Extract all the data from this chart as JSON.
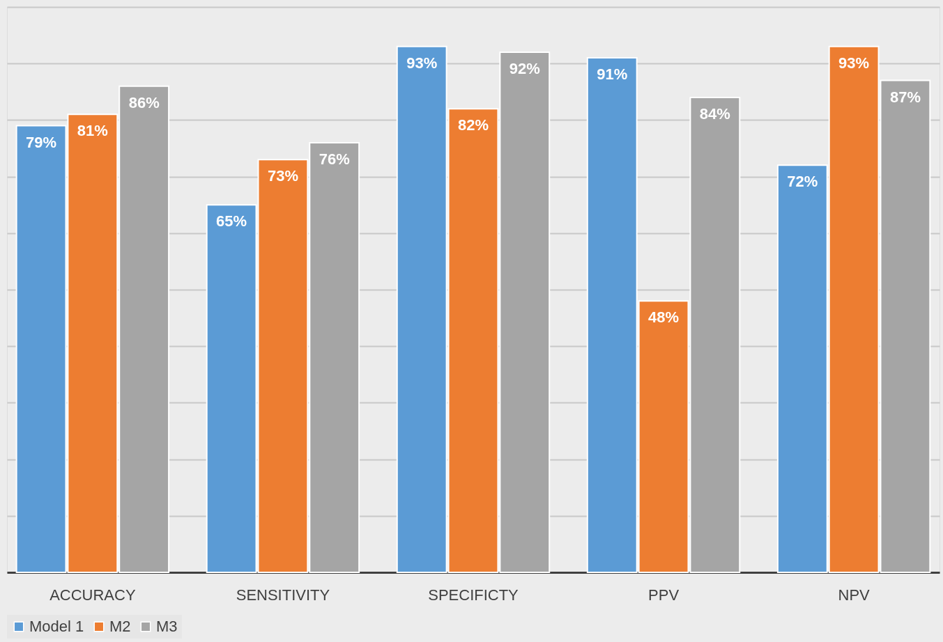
{
  "chart_data": {
    "type": "bar",
    "categories": [
      "ACCURACY",
      "SENSITIVITY",
      "SPECIFICTY",
      "PPV",
      "NPV"
    ],
    "series": [
      {
        "name": "Model 1",
        "color": "#5b9bd5",
        "values": [
          79,
          65,
          93,
          91,
          72
        ],
        "value_labels": [
          "79%",
          "65%",
          "93%",
          "91%",
          "72%"
        ]
      },
      {
        "name": "M2",
        "color": "#ed7d31",
        "values": [
          81,
          73,
          82,
          48,
          93
        ],
        "value_labels": [
          "81%",
          "73%",
          "82%",
          "48%",
          "93%"
        ]
      },
      {
        "name": "M3",
        "color": "#a5a5a5",
        "values": [
          86,
          76,
          92,
          84,
          87
        ],
        "value_labels": [
          "86%",
          "76%",
          "92%",
          "84%",
          "87%"
        ]
      }
    ],
    "ylim": [
      0,
      100
    ],
    "yticks": [
      {
        "value": 0,
        "label": null
      },
      {
        "value": 10,
        "label": null
      },
      {
        "value": 20,
        "label": null
      },
      {
        "value": 30,
        "label": null
      },
      {
        "value": 40,
        "label": null
      },
      {
        "value": 50,
        "label": null
      },
      {
        "value": 60,
        "label": null
      },
      {
        "value": 70,
        "label": null
      },
      {
        "value": 80,
        "label": null
      },
      {
        "value": 90,
        "label": null
      },
      {
        "value": 100,
        "label": null
      }
    ],
    "tick_labels": "x",
    "grid": "y",
    "legend": "bottom"
  }
}
